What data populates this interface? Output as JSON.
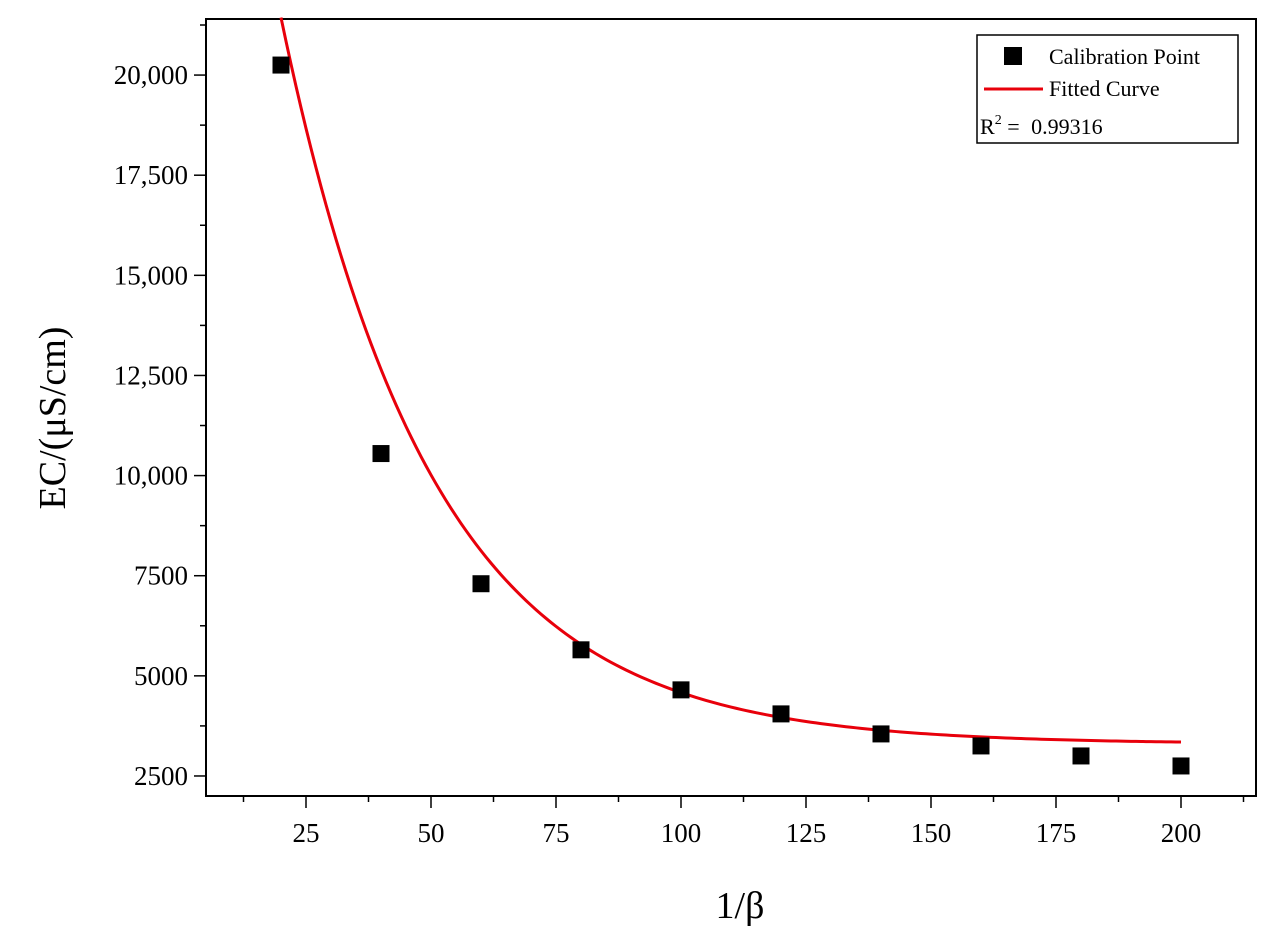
{
  "chart_data": {
    "type": "scatter",
    "title": "",
    "xlabel": "1/β",
    "ylabel": "EC/(μS/cm)",
    "xlim": [
      5,
      215
    ],
    "ylim": [
      2000,
      21400
    ],
    "x_ticks": [
      25,
      50,
      75,
      100,
      125,
      150,
      175,
      200
    ],
    "x_tick_labels": [
      "25",
      "50",
      "75",
      "100",
      "125",
      "150",
      "175",
      "200"
    ],
    "y_ticks": [
      2500,
      5000,
      7500,
      10000,
      12500,
      15000,
      17500,
      20000
    ],
    "y_tick_labels": [
      "2500",
      "5000",
      "7500",
      "10,000",
      "12,500",
      "15,000",
      "17,500",
      "20,000"
    ],
    "grid": false,
    "legend_position": "top-right",
    "series": [
      {
        "name": "Calibration Point",
        "kind": "scatter",
        "marker": "square",
        "color": "#000000",
        "x": [
          20,
          40,
          60,
          80,
          100,
          120,
          140,
          160,
          180,
          200
        ],
        "y": [
          20250,
          10550,
          7300,
          5650,
          4650,
          4050,
          3550,
          3250,
          3000,
          2750
        ]
      },
      {
        "name": "Fitted Curve",
        "kind": "line",
        "color": "#e8000b",
        "model": {
          "a": 3300,
          "b": 35170,
          "c": 30.2
        },
        "x_range": [
          20,
          200
        ]
      }
    ],
    "annotation": {
      "r2_label": "R",
      "r2_sup": "2",
      "r2_eq": " = ",
      "r2_value": "0.99316"
    }
  }
}
